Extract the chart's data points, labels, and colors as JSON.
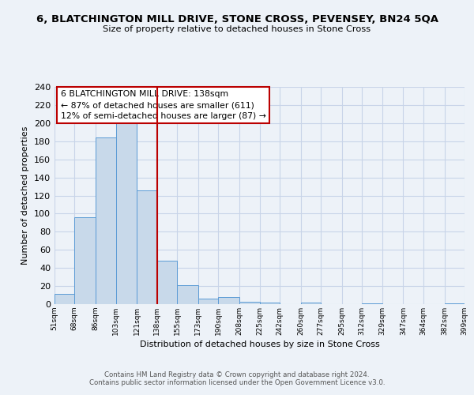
{
  "title": "6, BLATCHINGTON MILL DRIVE, STONE CROSS, PEVENSEY, BN24 5QA",
  "subtitle": "Size of property relative to detached houses in Stone Cross",
  "xlabel": "Distribution of detached houses by size in Stone Cross",
  "ylabel": "Number of detached properties",
  "bar_edges": [
    51,
    68,
    86,
    103,
    121,
    138,
    155,
    173,
    190,
    208,
    225,
    242,
    260,
    277,
    295,
    312,
    329,
    347,
    364,
    382,
    399
  ],
  "bar_heights": [
    11,
    96,
    184,
    201,
    126,
    48,
    21,
    6,
    8,
    3,
    2,
    0,
    2,
    0,
    0,
    1,
    0,
    0,
    0,
    1
  ],
  "bar_color": "#c8d9ea",
  "bar_edge_color": "#5b9bd5",
  "vline_x": 138,
  "vline_color": "#bb0000",
  "annotation_line1": "6 BLATCHINGTON MILL DRIVE: 138sqm",
  "annotation_line2": "← 87% of detached houses are smaller (611)",
  "annotation_line3": "12% of semi-detached houses are larger (87) →",
  "annotation_box_color": "#ffffff",
  "annotation_box_edge_color": "#bb0000",
  "ylim": [
    0,
    240
  ],
  "yticks": [
    0,
    20,
    40,
    60,
    80,
    100,
    120,
    140,
    160,
    180,
    200,
    220,
    240
  ],
  "tick_labels": [
    "51sqm",
    "68sqm",
    "86sqm",
    "103sqm",
    "121sqm",
    "138sqm",
    "155sqm",
    "173sqm",
    "190sqm",
    "208sqm",
    "225sqm",
    "242sqm",
    "260sqm",
    "277sqm",
    "295sqm",
    "312sqm",
    "329sqm",
    "347sqm",
    "364sqm",
    "382sqm",
    "399sqm"
  ],
  "grid_color": "#c8d4e8",
  "bg_color": "#edf2f8",
  "footer1": "Contains HM Land Registry data © Crown copyright and database right 2024.",
  "footer2": "Contains public sector information licensed under the Open Government Licence v3.0."
}
